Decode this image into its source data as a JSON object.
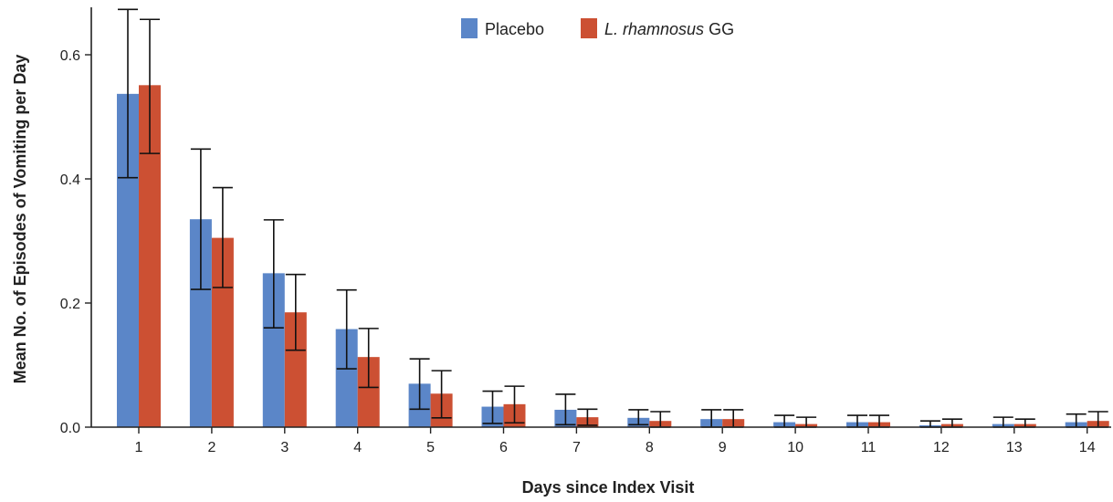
{
  "colors": {
    "placebo": "#5b86c8",
    "lgg": "#cc5033",
    "axis": "#222222",
    "errorbar": "#111111"
  },
  "legend": {
    "placebo": "Placebo",
    "lgg_italic": "L. rhamnosus",
    "lgg_suffix": " GG"
  },
  "chart_data": {
    "type": "bar",
    "xlabel": "Days since Index Visit",
    "ylabel": "Mean No. of Episodes of Vomiting per Day",
    "ylim": [
      0,
      0.68
    ],
    "yticks": [
      "0.0",
      "0.2",
      "0.4",
      "0.6"
    ],
    "categories": [
      "1",
      "2",
      "3",
      "4",
      "5",
      "6",
      "7",
      "8",
      "9",
      "10",
      "11",
      "12",
      "13",
      "14"
    ],
    "grid": false,
    "legend_position": "top-center",
    "series": [
      {
        "name": "Placebo",
        "values": [
          0.537,
          0.335,
          0.248,
          0.158,
          0.07,
          0.033,
          0.028,
          0.015,
          0.013,
          0.008,
          0.008,
          0.003,
          0.005,
          0.008
        ],
        "err_low": [
          0.402,
          0.222,
          0.16,
          0.094,
          0.029,
          0.006,
          0.004,
          0.004,
          0.0,
          0.0,
          0.0,
          0.0,
          0.0,
          0.0
        ],
        "err_high": [
          0.673,
          0.448,
          0.334,
          0.221,
          0.11,
          0.058,
          0.053,
          0.028,
          0.028,
          0.019,
          0.019,
          0.01,
          0.016,
          0.021
        ]
      },
      {
        "name": "L. rhamnosus GG",
        "values": [
          0.551,
          0.305,
          0.185,
          0.113,
          0.054,
          0.037,
          0.016,
          0.01,
          0.013,
          0.005,
          0.008,
          0.005,
          0.005,
          0.01
        ],
        "err_low": [
          0.441,
          0.225,
          0.124,
          0.064,
          0.015,
          0.007,
          0.003,
          0.0,
          0.0,
          0.0,
          0.0,
          0.0,
          0.0,
          0.0
        ],
        "err_high": [
          0.657,
          0.386,
          0.246,
          0.159,
          0.091,
          0.066,
          0.029,
          0.025,
          0.028,
          0.016,
          0.019,
          0.013,
          0.013,
          0.025
        ]
      }
    ]
  }
}
